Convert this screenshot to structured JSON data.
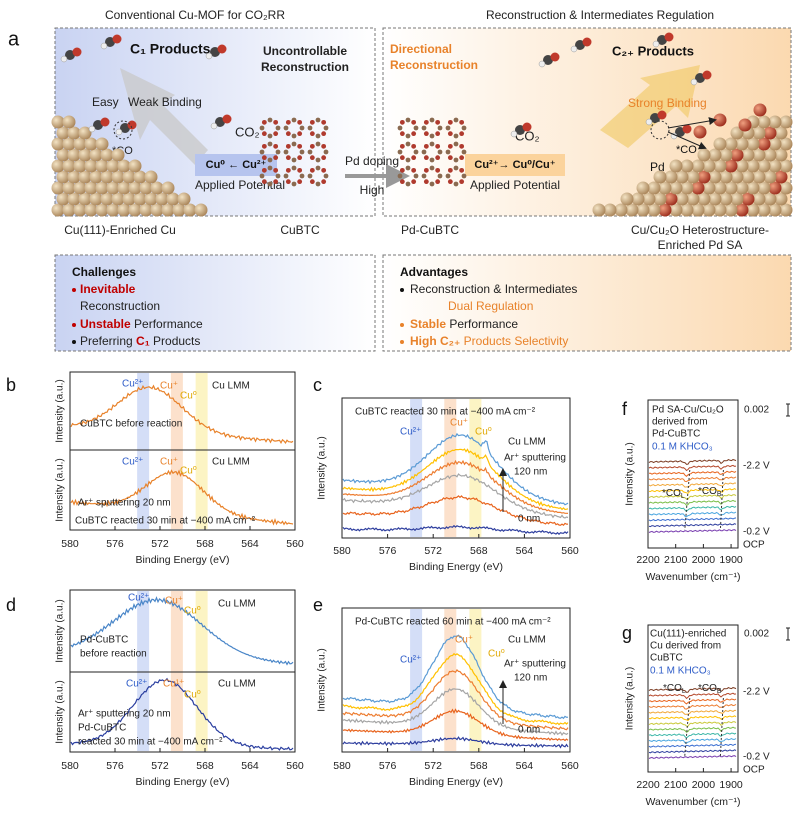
{
  "panel_a": {
    "label": "a",
    "left_title": "Conventional Cu-MOF for CO₂RR",
    "right_title": "Reconstruction & Intermediates Regulation",
    "left": {
      "products": "C₁ Products",
      "status": [
        "Uncontrollable",
        "Reconstruction"
      ],
      "easy": "Easy",
      "binding": "Weak Binding",
      "co2": "CO₂",
      "co": "*CO",
      "reaction": "Cu⁰ ← Cu²⁺",
      "potential": "Applied Potential",
      "caption": "Cu(111)-Enriched Cu"
    },
    "middle": {
      "mof": "CuBTC",
      "doping": "Pd doping",
      "high": "High",
      "doped": "Pd-CuBTC"
    },
    "right": {
      "status": [
        "Directional",
        "Reconstruction"
      ],
      "products": "C₂₊ Products",
      "binding": "Strong Binding",
      "co2": "CO₂",
      "reaction": "Cu²⁺→ Cu⁰/Cu⁺",
      "potential": "Applied Potential",
      "pd": "Pd",
      "co": "*CO",
      "caption": [
        "Cu/Cu₂O Heterostructure-",
        "Enriched Pd SA"
      ]
    }
  },
  "challenges": {
    "title": "Challenges",
    "items": [
      [
        "Inevitable",
        "Reconstruction"
      ],
      [
        "Unstable",
        "Performance"
      ],
      [
        "Preferring",
        "C₁",
        "Products"
      ]
    ]
  },
  "advantages": {
    "title": "Advantages",
    "items": [
      [
        "Reconstruction & Intermediates",
        "Dual Regulation"
      ],
      [
        "Stable",
        "Performance"
      ],
      [
        "High C₂₊",
        "Products Selectivity"
      ]
    ]
  },
  "panel_b": {
    "label": "b",
    "xlabel": "Binding Energy (eV)",
    "xlim": [
      580,
      560
    ],
    "xticks": [
      580,
      576,
      572,
      568,
      564,
      560
    ],
    "subplots": [
      {
        "ylabel": "Intensity (a.u.)",
        "notes": [
          "Cu²⁺",
          "Cu⁺",
          "Cu⁰",
          "Cu LMM",
          "CuBTC before reaction"
        ]
      },
      {
        "ylabel": "Intensity (a.u.)",
        "notes": [
          "Cu²⁺",
          "Cu⁺",
          "Cu⁰",
          "Cu LMM",
          "Ar⁺ sputtering 20 nm",
          "CuBTC reacted 30 min at −400 mA cm⁻²"
        ]
      }
    ]
  },
  "panel_c": {
    "label": "c",
    "title": "CuBTC reacted 30 min at −400 mA cm⁻²",
    "ylabel": "Intensity (a.u.)",
    "xlabel": "Binding Energy (eV)",
    "xlim": [
      580,
      560
    ],
    "xticks": [
      580,
      576,
      572,
      568,
      564,
      560
    ],
    "notes": [
      "Cu²⁺",
      "Cu⁺",
      "Cu⁰",
      "Cu LMM",
      "Ar⁺ sputtering",
      "120 nm",
      "0 nm"
    ]
  },
  "panel_d": {
    "label": "d",
    "xlabel": "Binding Energy (eV)",
    "xlim": [
      580,
      560
    ],
    "xticks": [
      580,
      576,
      572,
      568,
      564,
      560
    ],
    "subplots": [
      {
        "ylabel": "Intensity (a.u.)",
        "notes": [
          "Cu²⁺",
          "Cu⁺",
          "Cu⁰",
          "Cu LMM",
          "Pd-CuBTC",
          "before reaction"
        ]
      },
      {
        "ylabel": "Intensity (a.u.)",
        "notes": [
          "Cu²⁺",
          "Cu¹⁺",
          "Cu⁰",
          "Cu LMM",
          "Ar⁺ sputtering 20 nm",
          "Pd-CuBTC",
          "reacted 30 min at −400 mA cm⁻²"
        ]
      }
    ]
  },
  "panel_e": {
    "label": "e",
    "title": "Pd-CuBTC reacted 60 min at −400 mA cm⁻²",
    "ylabel": "Intensity (a.u.)",
    "xlabel": "Binding Energy (eV)",
    "xlim": [
      580,
      560
    ],
    "xticks": [
      580,
      576,
      572,
      568,
      564,
      560
    ],
    "notes": [
      "Cu⁺",
      "Cu²⁺",
      "Cu⁰",
      "Cu LMM",
      "Ar⁺ sputtering",
      "120 nm",
      "0 nm"
    ]
  },
  "panel_f": {
    "label": "f",
    "ylabel": "Intensity (a.u.)",
    "xlabel": "Wavenumber (cm⁻¹)",
    "xlim": [
      2200,
      1875
    ],
    "xticks": [
      2200,
      2100,
      2000,
      1900
    ],
    "scale": "0.002",
    "notes": [
      "Pd SA-Cu/Cu₂O",
      "derived  from",
      "Pd-CuBTC",
      "0.1 M KHCO₃",
      "-2.2 V",
      {
        "text": "*CO",
        "sub": "L"
      },
      {
        "text": "*CO",
        "sub": "B"
      },
      "-0.2 V",
      "OCP"
    ]
  },
  "panel_g": {
    "label": "g",
    "ylabel": "Intensity (a.u.)",
    "xlabel": "Wavenumber (cm⁻¹)",
    "xlim": [
      2200,
      1875
    ],
    "xticks": [
      2200,
      2100,
      2000,
      1900
    ],
    "scale": "0.002",
    "notes": [
      "Cu(111)-enriched",
      "Cu derived from",
      "CuBTC",
      "0.1 M KHCO₃",
      {
        "text": "*CO",
        "sub": "L"
      },
      {
        "text": "*CO",
        "sub": "B"
      },
      "-2.2 V",
      "-0.2 V",
      "OCP"
    ]
  }
}
